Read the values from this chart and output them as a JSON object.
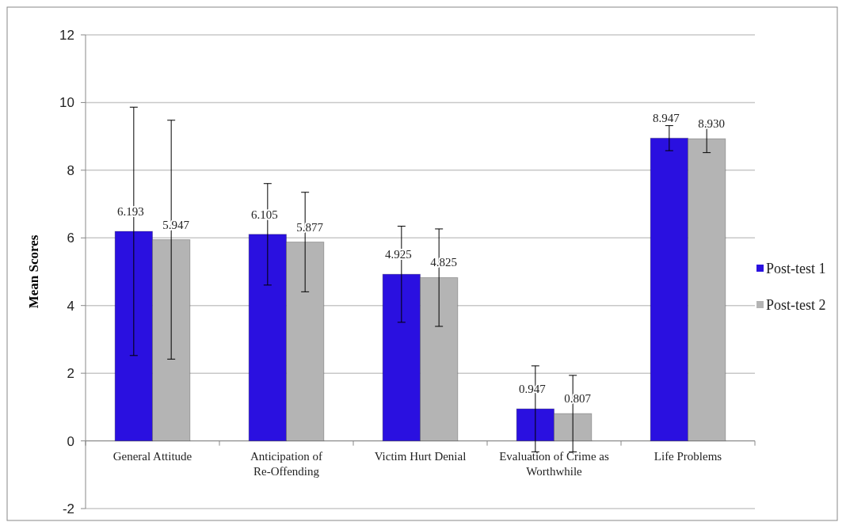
{
  "chart_data": {
    "type": "bar",
    "ylabel": "Mean Scores",
    "categories": [
      "General Attitude",
      "Anticipation of Re-Offending",
      "Victim Hurt Denial",
      "Evaluation of Crime as Worthwhile",
      "Life Problems"
    ],
    "series": [
      {
        "name": "Post-test 1",
        "color": "#2a10e0",
        "values": [
          6.193,
          6.105,
          4.925,
          0.947,
          8.947
        ],
        "value_labels": [
          "6.193",
          "6.105",
          "4.925",
          "0.947",
          "8.947"
        ],
        "errors": [
          3.67,
          1.5,
          1.42,
          1.27,
          0.37
        ]
      },
      {
        "name": "Post-test 2",
        "color": "#b4b4b4",
        "values": [
          5.947,
          5.877,
          4.825,
          0.807,
          8.93
        ],
        "value_labels": [
          "5.947",
          "5.877",
          "4.825",
          "0.807",
          "8.930"
        ],
        "errors": [
          3.53,
          1.47,
          1.44,
          1.13,
          0.41
        ]
      }
    ],
    "ylim": [
      -2,
      12
    ],
    "yticks": [
      -2,
      0,
      2,
      4,
      6,
      8,
      10,
      12
    ],
    "grid": "y",
    "legend": "right"
  }
}
